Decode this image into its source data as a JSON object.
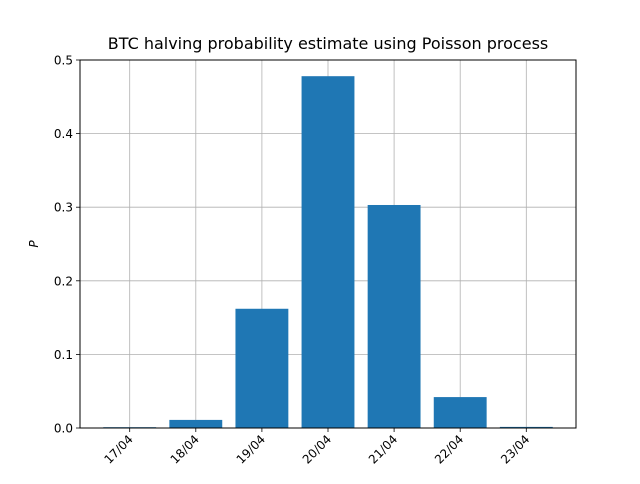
{
  "chart_data": {
    "type": "bar",
    "title": "BTC halving probability estimate using Poisson process",
    "xlabel": "",
    "ylabel": "P",
    "categories": [
      "17/04",
      "18/04",
      "19/04",
      "20/04",
      "21/04",
      "22/04",
      "23/04"
    ],
    "values": [
      0.0003,
      0.011,
      0.162,
      0.478,
      0.303,
      0.042,
      0.0015
    ],
    "ylim": [
      0,
      0.5
    ],
    "yticks": [
      0.0,
      0.1,
      0.2,
      0.3,
      0.4,
      0.5
    ],
    "ytick_labels": [
      "0.0",
      "0.1",
      "0.2",
      "0.3",
      "0.4",
      "0.5"
    ],
    "grid": true,
    "bar_color": "#1f77b4",
    "grid_color": "#b0b0b0"
  }
}
